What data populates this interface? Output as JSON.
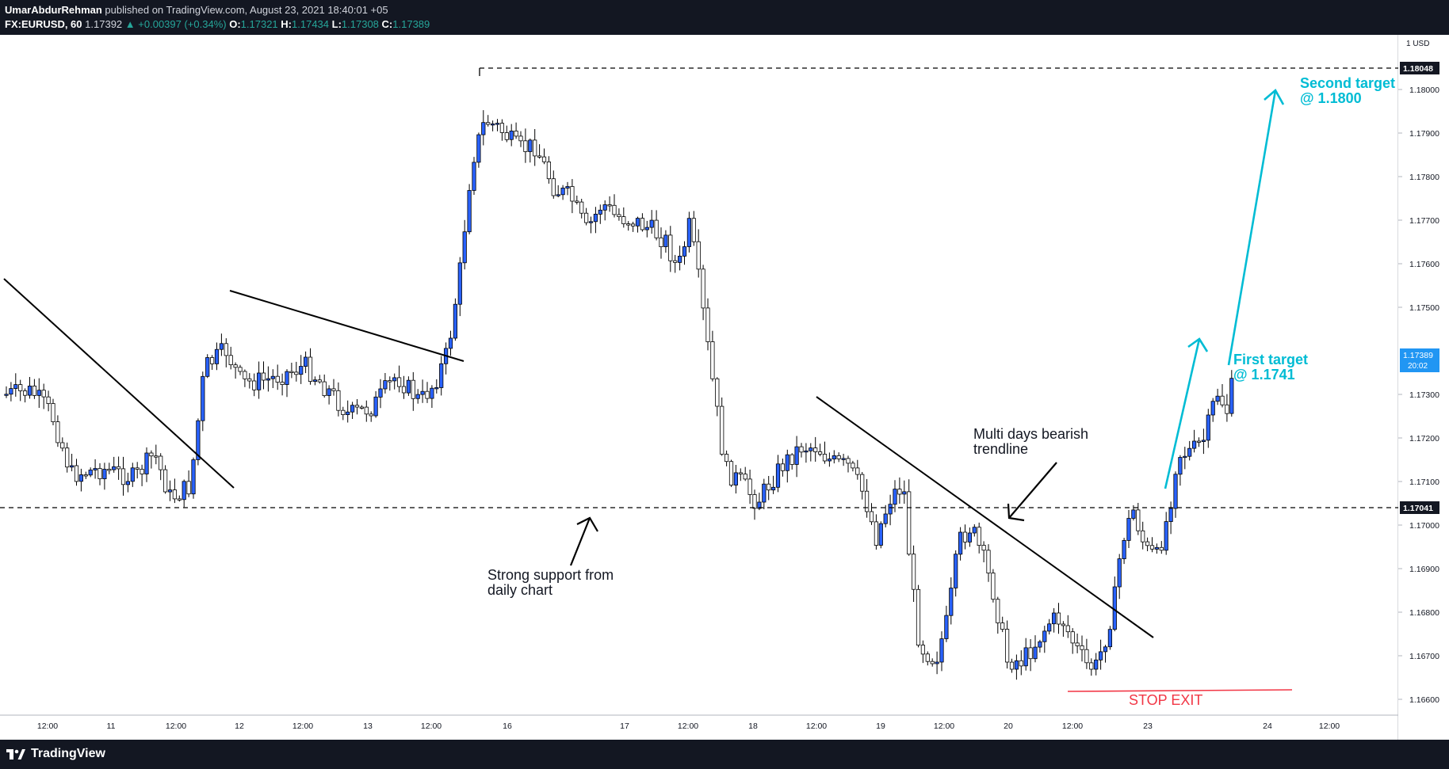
{
  "header": {
    "author": "UmarAbdurRehman",
    "published": "published on TradingView.com, August 23, 2021 18:40:01 +05",
    "symbol": "FX:EURUSD, 60",
    "last": "1.17392",
    "change": "+0.00397 (+0.34%)",
    "o_label": "O:",
    "o_value": "1.17321",
    "h_label": "H:",
    "h_value": "1.17434",
    "l_label": "L:",
    "l_value": "1.17308",
    "c_label": "C:",
    "c_value": "1.17389"
  },
  "price_axis": {
    "currency": "1 USD",
    "ticks": [
      "1.18000",
      "1.17900",
      "1.17800",
      "1.17700",
      "1.17600",
      "1.17500",
      "1.17300",
      "1.17200",
      "1.17100",
      "1.17000",
      "1.16900",
      "1.16800",
      "1.16700",
      "1.16600"
    ],
    "resistance_label": "1.18048",
    "support_label": "1.17041",
    "current_price": "1.17389",
    "countdown": "20:02"
  },
  "time_axis": {
    "labels": [
      "12:00",
      "11",
      "12:00",
      "12",
      "12:00",
      "13",
      "12:00",
      "16",
      "17",
      "12:00",
      "18",
      "12:00",
      "19",
      "12:00",
      "20",
      "12:00",
      "23",
      "24",
      "12:00"
    ]
  },
  "annotations": {
    "support": [
      "Strong support from",
      "daily chart"
    ],
    "trendline": [
      "Multi days bearish",
      "trendline"
    ],
    "stop": "STOP EXIT",
    "first_target": [
      "First target",
      "@ 1.1741"
    ],
    "second_target": [
      "Second target",
      "@ 1.1800"
    ]
  },
  "colors": {
    "bull": "#2962ff",
    "bear": "#ffffff",
    "wick": "#000000",
    "target": "#00bcd4",
    "stop": "#f23645",
    "axis_text": "#131722"
  },
  "footer": {
    "brand": "TradingView",
    "logo_icon": "tradingview-logo-icon"
  }
}
